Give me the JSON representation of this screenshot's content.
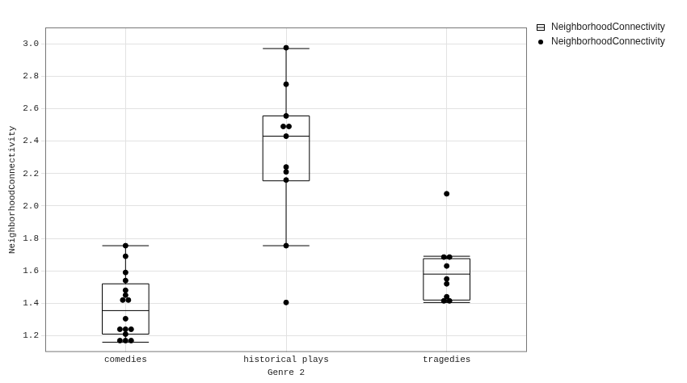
{
  "chart_data": {
    "type": "boxplot",
    "x_label": "Genre 2",
    "y_label": "NeighborhoodConnectivity",
    "categories": [
      "comedies",
      "historical plays",
      "tragedies"
    ],
    "ylim": [
      1.1,
      3.1
    ],
    "yticks": [
      1.2,
      1.4,
      1.6,
      1.8,
      {
        "value": 2.0,
        "label": "2.0"
      },
      2.2,
      2.4,
      2.6,
      2.8,
      {
        "value": 3.0,
        "label": "3.0"
      }
    ],
    "grid": true,
    "legend": "right",
    "series": [
      {
        "name": "NeighborhoodConnectivity",
        "type": "boxplot",
        "color": "#000000",
        "stats": [
          {
            "whislo": 1.16,
            "q1": 1.21,
            "med": 1.355,
            "q3": 1.52,
            "whishi": 1.755
          },
          {
            "whislo": 1.755,
            "q1": 2.155,
            "med": 2.43,
            "q3": 2.555,
            "whishi": 2.97
          },
          {
            "whislo": 1.405,
            "q1": 1.42,
            "med": 1.58,
            "q3": 1.675,
            "whishi": 1.69
          }
        ]
      },
      {
        "name": "NeighborhoodConnectivity",
        "type": "scatter",
        "color": "#000000",
        "marker": "circle",
        "values": [
          [
            1.755,
            1.69,
            1.59,
            1.54,
            1.48,
            1.45,
            1.42,
            1.42,
            1.305,
            1.24,
            1.24,
            1.24,
            1.21,
            1.17,
            1.17,
            1.17
          ],
          [
            2.975,
            2.75,
            2.555,
            2.49,
            2.49,
            2.43,
            2.24,
            2.21,
            2.16,
            1.755,
            1.405
          ],
          [
            2.075,
            1.685,
            1.685,
            1.63,
            1.55,
            1.52,
            1.44,
            1.415,
            1.415
          ]
        ]
      }
    ]
  }
}
